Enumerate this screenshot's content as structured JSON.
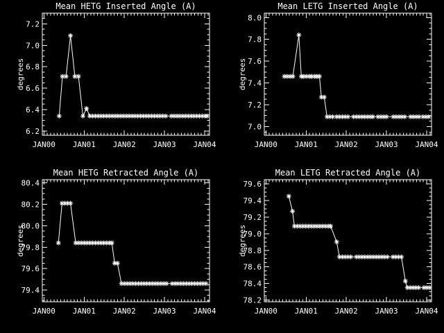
{
  "window": {
    "background": "#000000",
    "foreground": "#ffffff"
  },
  "chart_data": [
    {
      "id": "hetg-inserted",
      "type": "line",
      "title": "Mean HETG Inserted Angle (A)",
      "ylabel": "degrees",
      "xlabel": "",
      "grid": false,
      "legend_position": "none",
      "marker": "asterisk",
      "line_color": "#ffffff",
      "x_tick_labels": [
        "JAN00",
        "JAN01",
        "JAN02",
        "JAN03",
        "JAN04"
      ],
      "x_tick_values": [
        2000,
        2001,
        2002,
        2003,
        2004
      ],
      "x_minor_per_major": 12,
      "xlim": [
        1999.96,
        2004.12
      ],
      "ylim": [
        6.16,
        7.3
      ],
      "y_ticks": [
        6.2,
        6.4,
        6.6,
        6.8,
        7.0,
        7.2
      ],
      "y_tick_labels": [
        "6.2",
        "6.4",
        "6.6",
        "6.8",
        "7.0",
        "7.2"
      ],
      "y_minor_step": 0.05,
      "points": [
        [
          2000.38,
          6.34
        ],
        [
          2000.46,
          6.71
        ],
        [
          2000.55,
          6.71
        ],
        [
          2000.66,
          7.09
        ],
        [
          2000.77,
          6.71
        ],
        [
          2000.86,
          6.71
        ],
        [
          2000.97,
          6.34
        ],
        [
          2001.06,
          6.41
        ],
        [
          2001.14,
          6.34
        ],
        [
          2001.21,
          6.34
        ],
        [
          2001.28,
          6.34
        ],
        [
          2001.35,
          6.34
        ],
        [
          2001.42,
          6.34
        ],
        [
          2001.49,
          6.34
        ],
        [
          2001.56,
          6.34
        ],
        [
          2001.63,
          6.34
        ],
        [
          2001.7,
          6.34
        ],
        [
          2001.77,
          6.34
        ],
        [
          2001.84,
          6.34
        ],
        [
          2001.91,
          6.34
        ],
        [
          2001.98,
          6.34
        ],
        [
          2002.05,
          6.34
        ],
        [
          2002.12,
          6.34
        ],
        [
          2002.19,
          6.34
        ],
        [
          2002.26,
          6.34
        ],
        [
          2002.33,
          6.34
        ],
        [
          2002.4,
          6.34
        ],
        [
          2002.47,
          6.34
        ],
        [
          2002.54,
          6.34
        ],
        [
          2002.61,
          6.34
        ],
        [
          2002.68,
          6.34
        ],
        [
          2002.75,
          6.34
        ],
        [
          2002.82,
          6.34
        ],
        [
          2002.89,
          6.34
        ],
        [
          2002.96,
          6.34
        ],
        [
          2003.03,
          6.34
        ],
        [
          2003.17,
          6.34
        ],
        [
          2003.24,
          6.34
        ],
        [
          2003.31,
          6.34
        ],
        [
          2003.38,
          6.34
        ],
        [
          2003.45,
          6.34
        ],
        [
          2003.52,
          6.34
        ],
        [
          2003.59,
          6.34
        ],
        [
          2003.66,
          6.34
        ],
        [
          2003.73,
          6.34
        ],
        [
          2003.8,
          6.34
        ],
        [
          2003.87,
          6.34
        ],
        [
          2003.94,
          6.34
        ],
        [
          2004.01,
          6.34
        ],
        [
          2004.06,
          6.34
        ]
      ]
    },
    {
      "id": "letg-inserted",
      "type": "line",
      "title": "Mean LETG Inserted Angle (A)",
      "ylabel": "degrees",
      "xlabel": "",
      "grid": false,
      "legend_position": "none",
      "marker": "asterisk",
      "line_color": "#ffffff",
      "x_tick_labels": [
        "JAN00",
        "JAN01",
        "JAN02",
        "JAN03",
        "JAN04"
      ],
      "x_tick_values": [
        2000,
        2001,
        2002,
        2003,
        2004
      ],
      "x_minor_per_major": 12,
      "xlim": [
        1999.96,
        2004.12
      ],
      "ylim": [
        6.92,
        8.04
      ],
      "y_ticks": [
        7.0,
        7.2,
        7.4,
        7.6,
        7.8,
        8.0
      ],
      "y_tick_labels": [
        "7.0",
        "7.2",
        "7.4",
        "7.6",
        "7.8",
        "8.0"
      ],
      "y_minor_step": 0.05,
      "points": [
        [
          2000.46,
          7.46
        ],
        [
          2000.53,
          7.46
        ],
        [
          2000.6,
          7.46
        ],
        [
          2000.67,
          7.46
        ],
        [
          2000.82,
          7.84
        ],
        [
          2000.88,
          7.46
        ],
        [
          2000.94,
          7.46
        ],
        [
          2001.01,
          7.46
        ],
        [
          2001.08,
          7.46
        ],
        [
          2001.14,
          7.46
        ],
        [
          2001.21,
          7.46
        ],
        [
          2001.27,
          7.46
        ],
        [
          2001.33,
          7.46
        ],
        [
          2001.38,
          7.27
        ],
        [
          2001.45,
          7.27
        ],
        [
          2001.52,
          7.09
        ],
        [
          2001.59,
          7.09
        ],
        [
          2001.66,
          7.09
        ],
        [
          2001.76,
          7.09
        ],
        [
          2001.83,
          7.09
        ],
        [
          2001.9,
          7.09
        ],
        [
          2001.97,
          7.09
        ],
        [
          2002.04,
          7.09
        ],
        [
          2002.18,
          7.09
        ],
        [
          2002.25,
          7.09
        ],
        [
          2002.32,
          7.09
        ],
        [
          2002.39,
          7.09
        ],
        [
          2002.46,
          7.09
        ],
        [
          2002.53,
          7.09
        ],
        [
          2002.6,
          7.09
        ],
        [
          2002.66,
          7.09
        ],
        [
          2002.79,
          7.09
        ],
        [
          2002.86,
          7.09
        ],
        [
          2002.93,
          7.09
        ],
        [
          2003.0,
          7.09
        ],
        [
          2003.17,
          7.09
        ],
        [
          2003.24,
          7.09
        ],
        [
          2003.31,
          7.09
        ],
        [
          2003.38,
          7.09
        ],
        [
          2003.45,
          7.09
        ],
        [
          2003.6,
          7.09
        ],
        [
          2003.67,
          7.09
        ],
        [
          2003.74,
          7.09
        ],
        [
          2003.81,
          7.09
        ],
        [
          2003.91,
          7.09
        ],
        [
          2003.98,
          7.09
        ],
        [
          2004.05,
          7.09
        ]
      ]
    },
    {
      "id": "hetg-retracted",
      "type": "line",
      "title": "Mean HETG Retracted Angle (A)",
      "ylabel": "degrees",
      "xlabel": "",
      "grid": false,
      "legend_position": "none",
      "marker": "asterisk",
      "line_color": "#ffffff",
      "x_tick_labels": [
        "JAN00",
        "JAN01",
        "JAN02",
        "JAN03",
        "JAN04"
      ],
      "x_tick_values": [
        2000,
        2001,
        2002,
        2003,
        2004
      ],
      "x_minor_per_major": 12,
      "xlim": [
        1999.96,
        2004.12
      ],
      "ylim": [
        79.29,
        80.43
      ],
      "y_ticks": [
        79.4,
        79.6,
        79.8,
        80.0,
        80.2,
        80.4
      ],
      "y_tick_labels": [
        "79.4",
        "79.6",
        "79.8",
        "80.0",
        "80.2",
        "80.4"
      ],
      "y_minor_step": 0.05,
      "points": [
        [
          2000.36,
          79.84
        ],
        [
          2000.45,
          80.21
        ],
        [
          2000.52,
          80.21
        ],
        [
          2000.59,
          80.21
        ],
        [
          2000.66,
          80.21
        ],
        [
          2000.79,
          79.84
        ],
        [
          2000.86,
          79.84
        ],
        [
          2000.93,
          79.84
        ],
        [
          2001.0,
          79.84
        ],
        [
          2001.07,
          79.84
        ],
        [
          2001.14,
          79.84
        ],
        [
          2001.21,
          79.84
        ],
        [
          2001.28,
          79.84
        ],
        [
          2001.35,
          79.84
        ],
        [
          2001.42,
          79.84
        ],
        [
          2001.49,
          79.84
        ],
        [
          2001.56,
          79.84
        ],
        [
          2001.63,
          79.84
        ],
        [
          2001.69,
          79.84
        ],
        [
          2001.76,
          79.65
        ],
        [
          2001.83,
          79.65
        ],
        [
          2001.93,
          79.46
        ],
        [
          2002.0,
          79.46
        ],
        [
          2002.07,
          79.46
        ],
        [
          2002.14,
          79.46
        ],
        [
          2002.21,
          79.46
        ],
        [
          2002.28,
          79.46
        ],
        [
          2002.35,
          79.46
        ],
        [
          2002.42,
          79.46
        ],
        [
          2002.49,
          79.46
        ],
        [
          2002.56,
          79.46
        ],
        [
          2002.63,
          79.46
        ],
        [
          2002.7,
          79.46
        ],
        [
          2002.77,
          79.46
        ],
        [
          2002.84,
          79.46
        ],
        [
          2002.91,
          79.46
        ],
        [
          2002.98,
          79.46
        ],
        [
          2003.05,
          79.46
        ],
        [
          2003.19,
          79.46
        ],
        [
          2003.26,
          79.46
        ],
        [
          2003.33,
          79.46
        ],
        [
          2003.4,
          79.46
        ],
        [
          2003.47,
          79.46
        ],
        [
          2003.54,
          79.46
        ],
        [
          2003.61,
          79.46
        ],
        [
          2003.68,
          79.46
        ],
        [
          2003.75,
          79.46
        ],
        [
          2003.82,
          79.46
        ],
        [
          2003.89,
          79.46
        ],
        [
          2003.96,
          79.46
        ],
        [
          2004.03,
          79.46
        ]
      ]
    },
    {
      "id": "letg-retracted",
      "type": "line",
      "title": "Mean LETG Retracted Angle (A)",
      "ylabel": "degrees",
      "xlabel": "",
      "grid": false,
      "legend_position": "none",
      "marker": "asterisk",
      "line_color": "#ffffff",
      "x_tick_labels": [
        "JAN00",
        "JAN01",
        "JAN02",
        "JAN03",
        "JAN04"
      ],
      "x_tick_values": [
        2000,
        2001,
        2002,
        2003,
        2004
      ],
      "x_minor_per_major": 12,
      "xlim": [
        1999.96,
        2004.12
      ],
      "ylim": [
        78.18,
        79.65
      ],
      "y_ticks": [
        78.2,
        78.4,
        78.6,
        78.8,
        79.0,
        79.2,
        79.4,
        79.6
      ],
      "y_tick_labels": [
        "78.2",
        "78.4",
        "78.6",
        "78.8",
        "79.0",
        "79.2",
        "79.4",
        "79.6"
      ],
      "y_minor_step": 0.05,
      "points": [
        [
          2000.57,
          79.45
        ],
        [
          2000.66,
          79.27
        ],
        [
          2000.71,
          79.09
        ],
        [
          2000.78,
          79.09
        ],
        [
          2000.85,
          79.09
        ],
        [
          2000.92,
          79.09
        ],
        [
          2000.99,
          79.09
        ],
        [
          2001.06,
          79.09
        ],
        [
          2001.13,
          79.09
        ],
        [
          2001.2,
          79.09
        ],
        [
          2001.27,
          79.09
        ],
        [
          2001.34,
          79.09
        ],
        [
          2001.41,
          79.09
        ],
        [
          2001.48,
          79.09
        ],
        [
          2001.55,
          79.09
        ],
        [
          2001.61,
          79.09
        ],
        [
          2001.76,
          78.9
        ],
        [
          2001.83,
          78.72
        ],
        [
          2001.9,
          78.72
        ],
        [
          2001.97,
          78.72
        ],
        [
          2002.04,
          78.72
        ],
        [
          2002.11,
          78.72
        ],
        [
          2002.25,
          78.72
        ],
        [
          2002.32,
          78.72
        ],
        [
          2002.39,
          78.72
        ],
        [
          2002.46,
          78.72
        ],
        [
          2002.53,
          78.72
        ],
        [
          2002.6,
          78.72
        ],
        [
          2002.67,
          78.72
        ],
        [
          2002.74,
          78.72
        ],
        [
          2002.81,
          78.72
        ],
        [
          2002.88,
          78.72
        ],
        [
          2002.95,
          78.72
        ],
        [
          2003.02,
          78.72
        ],
        [
          2003.16,
          78.72
        ],
        [
          2003.23,
          78.72
        ],
        [
          2003.3,
          78.72
        ],
        [
          2003.37,
          78.72
        ],
        [
          2003.47,
          78.43
        ],
        [
          2003.52,
          78.35
        ],
        [
          2003.59,
          78.35
        ],
        [
          2003.66,
          78.35
        ],
        [
          2003.73,
          78.35
        ],
        [
          2003.8,
          78.35
        ],
        [
          2003.93,
          78.35
        ],
        [
          2004.0,
          78.35
        ],
        [
          2004.07,
          78.35
        ]
      ]
    }
  ]
}
